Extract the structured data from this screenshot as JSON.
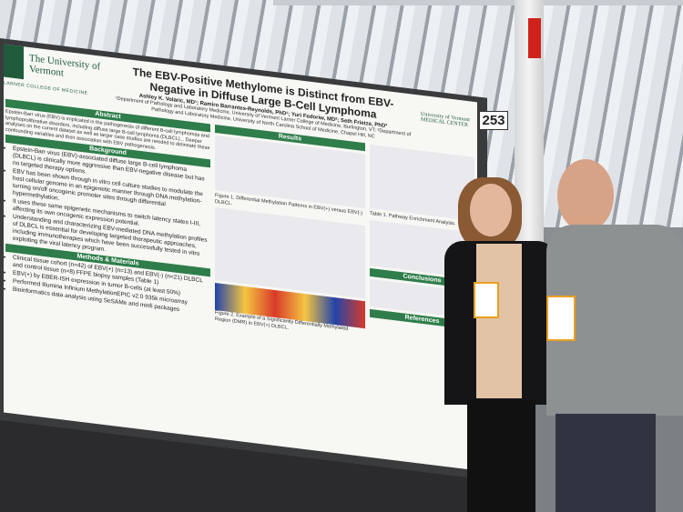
{
  "poster": {
    "booth_number": "253",
    "university": "The University of Vermont",
    "college": "LARNER COLLEGE OF MEDICINE",
    "medical_center": "University of Vermont MEDICAL CENTER",
    "title": "The EBV-Positive Methylome is Distinct from EBV-Negative in Diffuse Large B-Cell Lymphoma",
    "authors": "Ashley K. Volaric, MD¹; Ramiro Barrantes-Reynolds, PhD¹; Yuri Fedoriw, MD²; Seth Frietze, PhD³",
    "affiliations": "¹Department of Pathology and Laboratory Medicine, University of Vermont Larner College of Medicine, Burlington, VT; ²Department of Pathology and Laboratory Medicine, University of North Carolina School of Medicine, Chapel Hill, NC",
    "sections": {
      "abstract": "Abstract",
      "results": "Results",
      "background": "Background",
      "methods": "Methods & Materials",
      "conclusions": "Conclusions",
      "references": "References"
    },
    "abstract_text": "Epstein-Barr virus (EBV) is implicated in the pathogenesis of different B-cell lymphomas and lymphoproliferative disorders, including diffuse large B-cell lymphoma (DLBCL)... Deeper analyses on the current dataset as well as larger case studies are needed to delineate these confounding variables and their association with EBV pathogenesis.",
    "background": [
      "Epstein-Barr virus (EBV)-associated diffuse large B-cell lymphoma (DLBCL) is clinically more aggressive than EBV-negative disease but has no targeted therapy options.",
      "EBV has been shown through in vitro cell culture studies to modulate the host cellular genome in an epigenetic manner through DNA methylation- turning on/off oncogenic promoter sites through differential hypermethylation.",
      "It uses these same epigenetic mechanisms to switch latency states I-III, affecting its own oncogenic expression potential.",
      "Understanding and characterizing EBV-mediated DNA methylation profiles of DLBCL is essential for developing targeted therapeutic approaches, including immunotherapies which have been successfully tested in vitro exploiting the viral latency program."
    ],
    "methods": [
      "Clinical tissue cohort (n=42) of EBV(+) (n=13) and EBV(-) (n=21) DLBCL and control tissue (n=8) FFPE biopsy samples (Table 1)",
      "EBV(+) by EBER-ISH expression in tumor B-cells (at least 50%)",
      "Performed Illumina Infinium MethylationEPIC v2.0 935k microarray",
      "Bioinformatics data analysis using SeSAMe and minfi packages"
    ],
    "figure1_caption": "Figure 1. Differential Methylation Patterns in EBV(+) versus EBV(-) DLBCL.",
    "figure2_caption": "Figure 2. Example of a Significantly Differentially Methylated Region (DMR) in EBV(+) DLBCL.",
    "table_caption": "Table 1. Pathway Enrichment Analysis."
  }
}
